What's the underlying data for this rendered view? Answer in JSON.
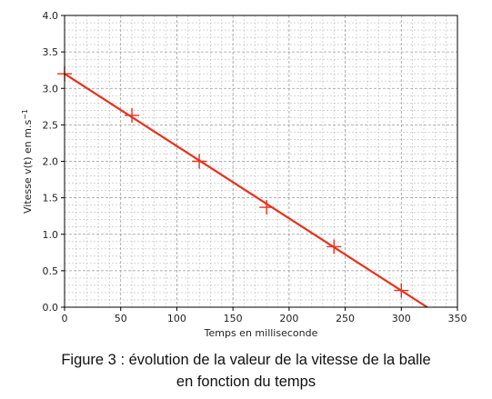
{
  "chart_data": {
    "type": "scatter",
    "xlabel": "Temps en milliseconde",
    "ylabel": "Vitesse v(t) en m.s",
    "ylabel_exponent": "−1",
    "xlim": [
      0,
      350
    ],
    "ylim": [
      0,
      4.0
    ],
    "x_ticks": [
      0,
      50,
      100,
      150,
      200,
      250,
      300,
      350
    ],
    "y_ticks": [
      "0.0",
      "0.5",
      "1.0",
      "1.5",
      "2.0",
      "2.5",
      "3.0",
      "3.5",
      "4.0"
    ],
    "grid": true,
    "grid_minor": true,
    "series": [
      {
        "marker": "+",
        "x": [
          0,
          60,
          120,
          180,
          240,
          300
        ],
        "y": [
          3.2,
          2.63,
          2.0,
          1.37,
          0.83,
          0.23
        ],
        "color": "#e8311a"
      }
    ],
    "fit_line": {
      "x": [
        0,
        323
      ],
      "y": [
        3.2,
        0.0
      ],
      "color": "#e8311a"
    }
  },
  "caption": {
    "line1": "Figure 3 : évolution de la valeur de la vitesse de la balle",
    "line2": "en fonction du temps"
  }
}
